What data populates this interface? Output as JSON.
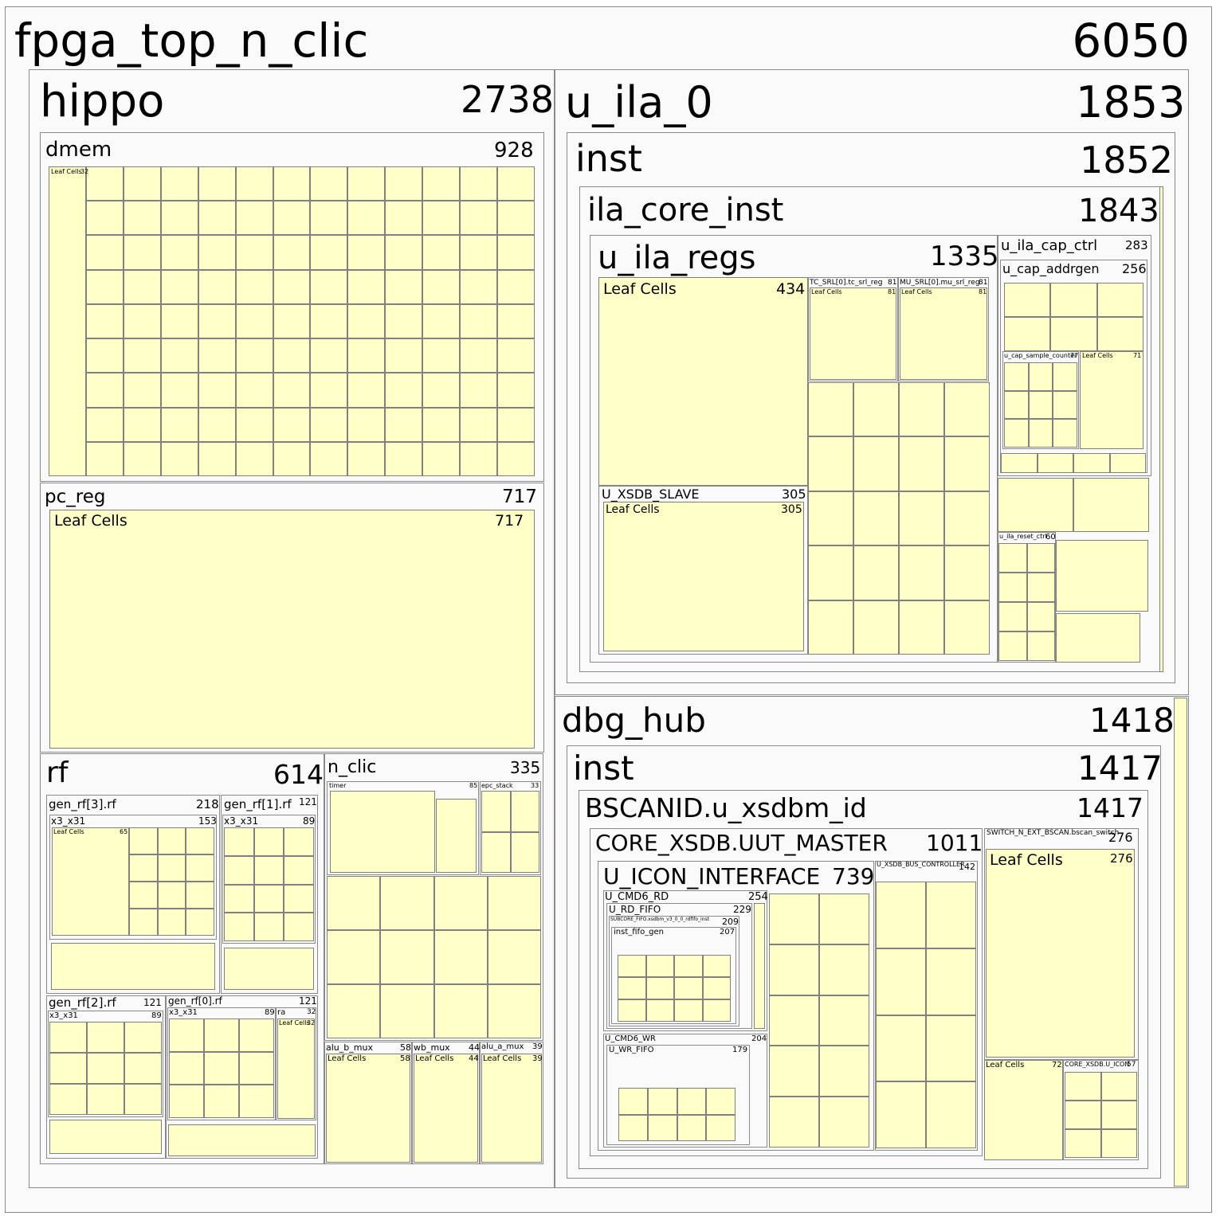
{
  "nodes": {
    "root": {
      "name": "fpga_top_n_clic",
      "value": "6050"
    },
    "hippo": {
      "name": "hippo",
      "value": "2738"
    },
    "dmem": {
      "name": "dmem",
      "value": "928",
      "leaf_label": "Leaf Cells",
      "leaf_value": "32"
    },
    "pc_reg": {
      "name": "pc_reg",
      "value": "717",
      "leaf_label": "Leaf Cells",
      "leaf_value": "717"
    },
    "rf": {
      "name": "rf",
      "value": "614"
    },
    "gen_rf3": {
      "name": "gen_rf[3].rf",
      "value": "218"
    },
    "gen_rf3_x3": {
      "name": "x3_x31",
      "value": "153"
    },
    "gen_rf3_leaf": {
      "name": "Leaf Cells",
      "value": "65"
    },
    "gen_rf1": {
      "name": "gen_rf[1].rf",
      "value": "121"
    },
    "gen_rf1_x3": {
      "name": "x3_x31",
      "value": "89"
    },
    "gen_rf2": {
      "name": "gen_rf[2].rf",
      "value": "121"
    },
    "gen_rf2_x3": {
      "name": "x3_x31",
      "value": "89"
    },
    "gen_rf0": {
      "name": "gen_rf[0].rf",
      "value": "121"
    },
    "gen_rf0_x3": {
      "name": "x3_x31",
      "value": "89"
    },
    "ra": {
      "name": "ra",
      "value": "32"
    },
    "ra_leaf": {
      "name": "Leaf Cells",
      "value": "32"
    },
    "n_clic": {
      "name": "n_clic",
      "value": "335"
    },
    "timer": {
      "name": "timer",
      "value": "85"
    },
    "epc_stack": {
      "name": "epc_stack",
      "value": "33"
    },
    "alu_b_mux": {
      "name": "alu_b_mux",
      "value": "58",
      "leaf_label": "Leaf Cells",
      "leaf_value": "58"
    },
    "wb_mux": {
      "name": "wb_mux",
      "value": "44",
      "leaf_label": "Leaf Cells",
      "leaf_value": "44"
    },
    "alu_a_mux": {
      "name": "alu_a_mux",
      "value": "39",
      "leaf_label": "Leaf Cells",
      "leaf_value": "39"
    },
    "u_ila_0": {
      "name": "u_ila_0",
      "value": "1853"
    },
    "ila_inst": {
      "name": "inst",
      "value": "1852"
    },
    "ila_core_inst": {
      "name": "ila_core_inst",
      "value": "1843"
    },
    "u_ila_regs": {
      "name": "u_ila_regs",
      "value": "1335"
    },
    "regs_leaf": {
      "name": "Leaf Cells",
      "value": "434"
    },
    "u_xsdb_slave": {
      "name": "U_XSDB_SLAVE",
      "value": "305",
      "leaf_label": "Leaf Cells",
      "leaf_value": "305"
    },
    "tc_srl": {
      "name": "TC_SRL[0].tc_srl_reg",
      "value": "81",
      "leaf_label": "Leaf Cells",
      "leaf_value": "81"
    },
    "mu_srl": {
      "name": "MU_SRL[0].mu_srl_reg",
      "value": "81",
      "leaf_label": "Leaf Cells",
      "leaf_value": "81"
    },
    "u_ila_cap_ctrl": {
      "name": "u_ila_cap_ctrl",
      "value": "283"
    },
    "u_cap_addrgen": {
      "name": "u_cap_addrgen",
      "value": "256"
    },
    "u_cap_sample_counter": {
      "name": "u_cap_sample_counter",
      "value": "77"
    },
    "cap_leaf": {
      "name": "Leaf Cells",
      "value": "71"
    },
    "u_ila_reset_ctrl": {
      "name": "u_ila_reset_ctrl",
      "value": "60"
    },
    "dbg_hub": {
      "name": "dbg_hub",
      "value": "1418"
    },
    "hub_inst": {
      "name": "inst",
      "value": "1417"
    },
    "bscanid": {
      "name": "BSCANID.u_xsdbm_id",
      "value": "1417"
    },
    "core_xsdb": {
      "name": "CORE_XSDB.UUT_MASTER",
      "value": "1011"
    },
    "u_icon_interface": {
      "name": "U_ICON_INTERFACE",
      "value": "739"
    },
    "u_cmd6_rd": {
      "name": "U_CMD6_RD",
      "value": "254"
    },
    "u_rd_fifo": {
      "name": "U_RD_FIFO",
      "value": "229"
    },
    "subcore_fifo": {
      "name": "SUBCORE_FIFO.xsdbm_v3_0_0_rdfifo_inst",
      "value": "209"
    },
    "inst_fifo_gen": {
      "name": "inst_fifo_gen",
      "value": "207"
    },
    "u_cmd6_wr": {
      "name": "U_CMD6_WR",
      "value": "204"
    },
    "u_wr_fifo": {
      "name": "U_WR_FIFO",
      "value": "179"
    },
    "u_xsdb_bus_controller": {
      "name": "U_XSDB_BUS_CONTROLLER",
      "value": "142"
    },
    "switch_bscan": {
      "name": "SWITCH_N_EXT_BSCAN.bscan_switch",
      "value": "276",
      "leaf_label": "Leaf Cells",
      "leaf_value": "276"
    },
    "bscan_leaf": {
      "name": "Leaf Cells",
      "value": "72"
    },
    "core_xsdb_icon": {
      "name": "CORE_XSDB.U_ICON",
      "value": "57"
    }
  },
  "colors": {
    "leaf": "#ffffc8",
    "container": "#fafafa",
    "border": "#8a8a8a"
  }
}
